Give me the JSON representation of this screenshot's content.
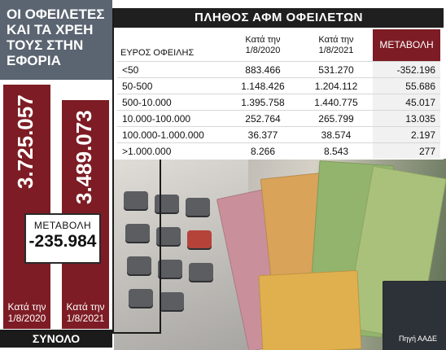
{
  "title": "ΟΙ ΟΦΕΙΛΕΤΕΣ ΚΑΙ ΤΑ ΧΡΕΗ ΤΟΥΣ ΣΤΗΝ ΕΦΟΡΙΑ",
  "colors": {
    "accent": "#7d1c24",
    "title_bg": "#5b6471",
    "dark": "#1f1f1f"
  },
  "chart_data": [
    {
      "type": "bar",
      "categories": [
        "Κατά την 1/8/2020",
        "Κατά την 1/8/2021"
      ],
      "values": [
        3725057,
        3489073
      ],
      "value_labels": [
        "3.725.057",
        "3.489.073"
      ],
      "change_label": "ΜΕΤΑΒΟΛΗ",
      "change_value": "-235.984",
      "total_label": "ΣΥΝΟΛΟ"
    },
    {
      "type": "table",
      "title": "ΠΛΗΘΟΣ ΑΦΜ ΟΦΕΙΛΕΤΩΝ",
      "columns": [
        "ΕΥΡΟΣ ΟΦΕΙΛΗΣ",
        "Κατά την 1/8/2020",
        "Κατά την 1/8/2021",
        "ΜΕΤΑΒΟΛΗ"
      ],
      "rows": [
        [
          "<50",
          "883.466",
          "531.270",
          "-352.196"
        ],
        [
          "50-500",
          "1.148.426",
          "1.204.112",
          "55.686"
        ],
        [
          "500-10.000",
          "1.395.758",
          "1.440.775",
          "45.017"
        ],
        [
          "10.000-100.000",
          "252.764",
          "265.799",
          "13.035"
        ],
        [
          "100.000-1.000.000",
          "36.377",
          "38.574",
          "2.197"
        ],
        [
          ">1.000.000",
          "8.266",
          "8.543",
          "277"
        ]
      ]
    }
  ],
  "source": "Πηγή ΑΑΔΕ"
}
